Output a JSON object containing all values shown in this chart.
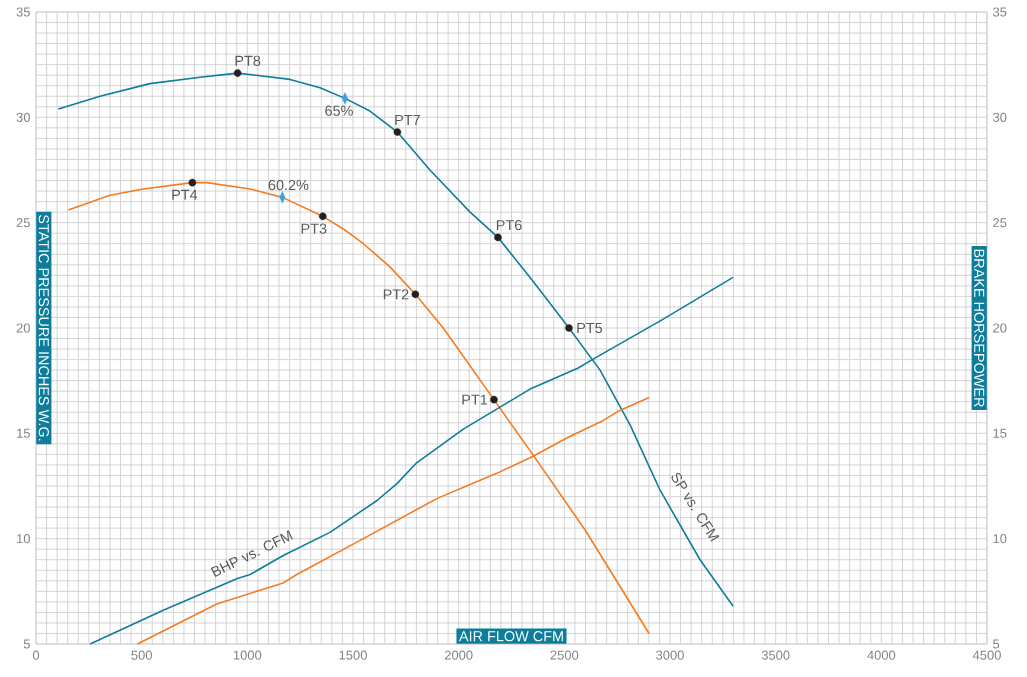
{
  "chart_data": {
    "type": "line",
    "xlabel": "AIR FLOW CFM",
    "ylabel": "STATIC PRESSURE INCHES W.G.",
    "y2label": "BRAKE HORSEPOWER",
    "xlim": [
      0,
      4500
    ],
    "xticks": [
      0,
      500,
      1000,
      1500,
      2000,
      2500,
      3000,
      3500,
      4000,
      4500
    ],
    "ylim": [
      5,
      35
    ],
    "yticks": [
      5,
      10,
      15,
      20,
      25,
      30,
      35
    ],
    "y2lim": [
      5,
      35
    ],
    "y2ticks": [
      5,
      10,
      15,
      20,
      25,
      30,
      35
    ],
    "grid": true,
    "series": [
      {
        "color": "#0e7d9c",
        "x": [
          106,
          303,
          539,
          776,
          954,
          1202,
          1344,
          1462,
          1580,
          1710,
          1864,
          2054,
          2186,
          2338,
          2522,
          2669,
          2811,
          2953,
          3142,
          3298
        ],
        "values": [
          30.4,
          31.0,
          31.6,
          31.9,
          32.1,
          31.8,
          31.4,
          30.9,
          30.3,
          29.3,
          27.5,
          25.5,
          24.3,
          22.4,
          20.0,
          18.0,
          15.4,
          12.3,
          9.0,
          6.8
        ]
      },
      {
        "color": "#f47b20",
        "x": [
          153,
          350,
          508,
          740,
          808,
          1013,
          1166,
          1357,
          1454,
          1549,
          1675,
          1795,
          1927,
          2167,
          2350,
          2599,
          2901
        ],
        "values": [
          25.6,
          26.3,
          26.6,
          26.9,
          26.9,
          26.6,
          26.2,
          25.3,
          24.7,
          24.0,
          22.9,
          21.6,
          20.0,
          16.6,
          14.0,
          10.4,
          5.5
        ]
      },
      {
        "axis": "y2",
        "color": "#0e7d9c",
        "x": [
          256,
          602,
          950,
          1013,
          1170,
          1391,
          1612,
          1707,
          1801,
          2022,
          2338,
          2566,
          2632,
          2964,
          3298
        ],
        "values": [
          5.0,
          6.6,
          8.1,
          8.3,
          9.2,
          10.3,
          11.8,
          12.6,
          13.6,
          15.2,
          17.1,
          18.1,
          18.5,
          20.4,
          22.4
        ]
      },
      {
        "axis": "y2",
        "color": "#f47b20",
        "x": [
          480,
          855,
          1170,
          1234,
          1549,
          1896,
          2180,
          2350,
          2516,
          2682,
          2765,
          2901
        ],
        "values": [
          5.0,
          6.9,
          7.9,
          8.3,
          10.0,
          11.9,
          13.1,
          13.9,
          14.8,
          15.6,
          16.1,
          16.7
        ]
      },
      {
        "type": "scatter",
        "marker": "circle",
        "color": "#231f20",
        "x": [
          2167,
          1795,
          1357,
          740,
          2522,
          2186,
          1710,
          954
        ],
        "values": [
          16.6,
          21.6,
          25.3,
          26.9,
          20.0,
          24.3,
          29.3,
          32.1
        ]
      },
      {
        "type": "scatter",
        "marker": "diamond",
        "color": "#3f9fdc",
        "x": [
          1462,
          1166
        ],
        "values": [
          30.9,
          26.2
        ]
      }
    ],
    "annotations": [
      {
        "text": "PT1",
        "x": 2167,
        "y": 16.6
      },
      {
        "text": "PT2",
        "x": 1795,
        "y": 21.6
      },
      {
        "text": "PT3",
        "x": 1357,
        "y": 25.3
      },
      {
        "text": "PT4",
        "x": 740,
        "y": 26.9
      },
      {
        "text": "PT5",
        "x": 2522,
        "y": 20.0
      },
      {
        "text": "PT6",
        "x": 2186,
        "y": 24.3
      },
      {
        "text": "PT7",
        "x": 1710,
        "y": 29.3
      },
      {
        "text": "PT8",
        "x": 954,
        "y": 32.1
      },
      {
        "text": "65%",
        "x": 1462,
        "y": 30.9
      },
      {
        "text": "60.2%",
        "x": 1166,
        "y": 26.2
      },
      "BHP vs. CFM",
      "SP vs. CFM"
    ]
  }
}
